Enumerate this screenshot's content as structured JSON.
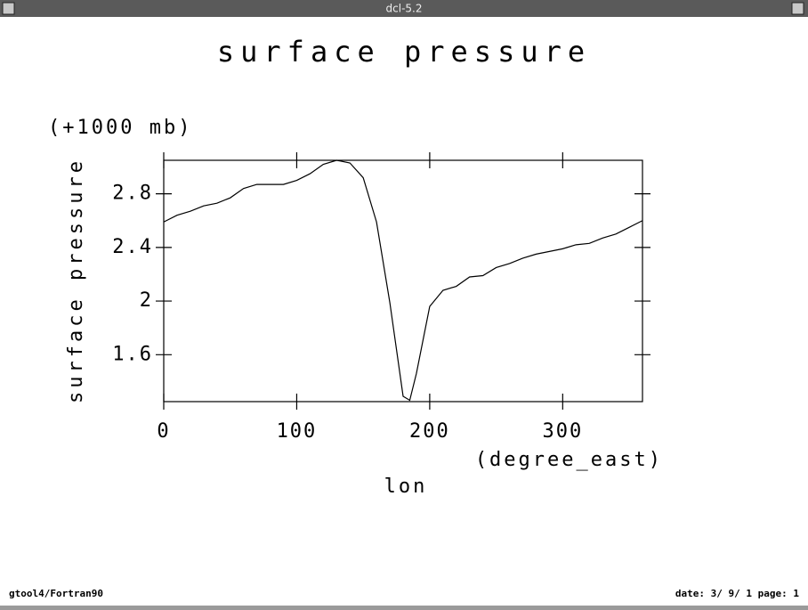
{
  "window": {
    "title": "dcl-5.2"
  },
  "chart_data": {
    "type": "line",
    "title": "surface pressure",
    "y_unit": "(+1000 mb)",
    "y_label": "surface pressure",
    "x_unit": "(degree_east)",
    "x_label": "lon",
    "x": [
      0,
      10,
      20,
      30,
      40,
      50,
      60,
      70,
      80,
      90,
      100,
      110,
      120,
      130,
      140,
      150,
      160,
      170,
      180,
      185,
      190,
      200,
      210,
      220,
      230,
      240,
      250,
      260,
      270,
      280,
      290,
      300,
      310,
      320,
      330,
      340,
      350,
      360
    ],
    "series": [
      {
        "name": "surface pressure",
        "color": "#000000",
        "values": [
          2.59,
          2.64,
          2.67,
          2.71,
          2.73,
          2.77,
          2.84,
          2.87,
          2.87,
          2.87,
          2.9,
          2.95,
          3.02,
          3.05,
          3.03,
          2.92,
          2.59,
          1.99,
          1.29,
          1.26,
          1.46,
          1.96,
          2.08,
          2.11,
          2.18,
          2.19,
          2.25,
          2.28,
          2.32,
          2.35,
          2.37,
          2.39,
          2.42,
          2.43,
          2.47,
          2.5,
          2.55,
          2.6
        ]
      }
    ],
    "xlim": [
      0,
      360
    ],
    "xticks": [
      0,
      100,
      200,
      300
    ],
    "ylim": [
      1.25,
      3.05
    ],
    "yticks": [
      1.6,
      2.0,
      2.4,
      2.8
    ]
  },
  "footer": {
    "left": "gtool4/Fortran90",
    "right": "date: 3/ 9/ 1 page: 1"
  }
}
